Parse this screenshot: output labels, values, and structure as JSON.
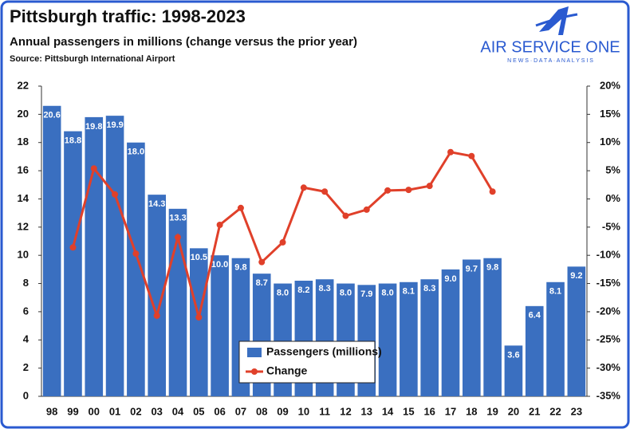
{
  "chart_data": {
    "type": "bar",
    "title": "Pittsburgh traffic: 1998-2023",
    "subtitle": "Annual passengers in millions (change versus the prior year)",
    "source": "Source: Pittsburgh International Airport",
    "categories": [
      "98",
      "99",
      "00",
      "01",
      "02",
      "03",
      "04",
      "05",
      "06",
      "07",
      "08",
      "09",
      "10",
      "11",
      "12",
      "13",
      "14",
      "15",
      "16",
      "17",
      "18",
      "19",
      "20",
      "21",
      "22",
      "23"
    ],
    "series": [
      {
        "name": "Passengers (millions)",
        "type": "bar",
        "color": "#3a6fc0",
        "values": [
          20.6,
          18.8,
          19.8,
          19.9,
          18.0,
          14.3,
          13.3,
          10.5,
          10.0,
          9.8,
          8.7,
          8.0,
          8.2,
          8.3,
          8.0,
          7.9,
          8.0,
          8.1,
          8.3,
          9.0,
          9.7,
          9.8,
          3.6,
          6.4,
          8.1,
          9.2
        ],
        "value_labels": [
          "20.6",
          "18.8",
          "19.8",
          "19.9",
          "18.0",
          "14.3",
          "13.3",
          "10.5",
          "10.0",
          "9.8",
          "8.7",
          "8.0",
          "8.2",
          "8.3",
          "8.0",
          "7.9",
          "8.0",
          "8.1",
          "8.3",
          "9.0",
          "9.7",
          "9.8",
          "3.6",
          "6.4",
          "8.1",
          "9.2"
        ]
      },
      {
        "name": "Change",
        "type": "line",
        "axis": "y2",
        "color": "#e0402a",
        "values": [
          null,
          -8.6,
          5.4,
          0.8,
          -9.7,
          -20.7,
          -6.8,
          -21.0,
          -4.6,
          -1.6,
          -11.2,
          -7.7,
          2.0,
          1.3,
          -3.0,
          -1.9,
          1.5,
          1.6,
          2.3,
          8.3,
          7.6,
          1.3,
          null,
          null,
          null,
          null
        ]
      }
    ],
    "ylim": [
      0,
      22
    ],
    "yticks": [
      0,
      2,
      4,
      6,
      8,
      10,
      12,
      14,
      16,
      18,
      20,
      22
    ],
    "y2lim": [
      -35,
      20
    ],
    "y2ticks": [
      {
        "value": -35,
        "label": "-35%"
      },
      {
        "value": -30,
        "label": "-30%"
      },
      {
        "value": -25,
        "label": "-25%"
      },
      {
        "value": -20,
        "label": "-20%"
      },
      {
        "value": -15,
        "label": "-15%"
      },
      {
        "value": -10,
        "label": "-10%"
      },
      {
        "value": -5,
        "label": "-5%"
      },
      {
        "value": 0,
        "label": "0%"
      },
      {
        "value": 5,
        "label": "5%"
      },
      {
        "value": 10,
        "label": "10%"
      },
      {
        "value": 15,
        "label": "15%"
      },
      {
        "value": 20,
        "label": "20%"
      }
    ]
  },
  "logo": {
    "name": "AIR SERVICE ONE",
    "tagline": "N E W S  ·  D A T A  ·  A N A L Y S I S"
  }
}
